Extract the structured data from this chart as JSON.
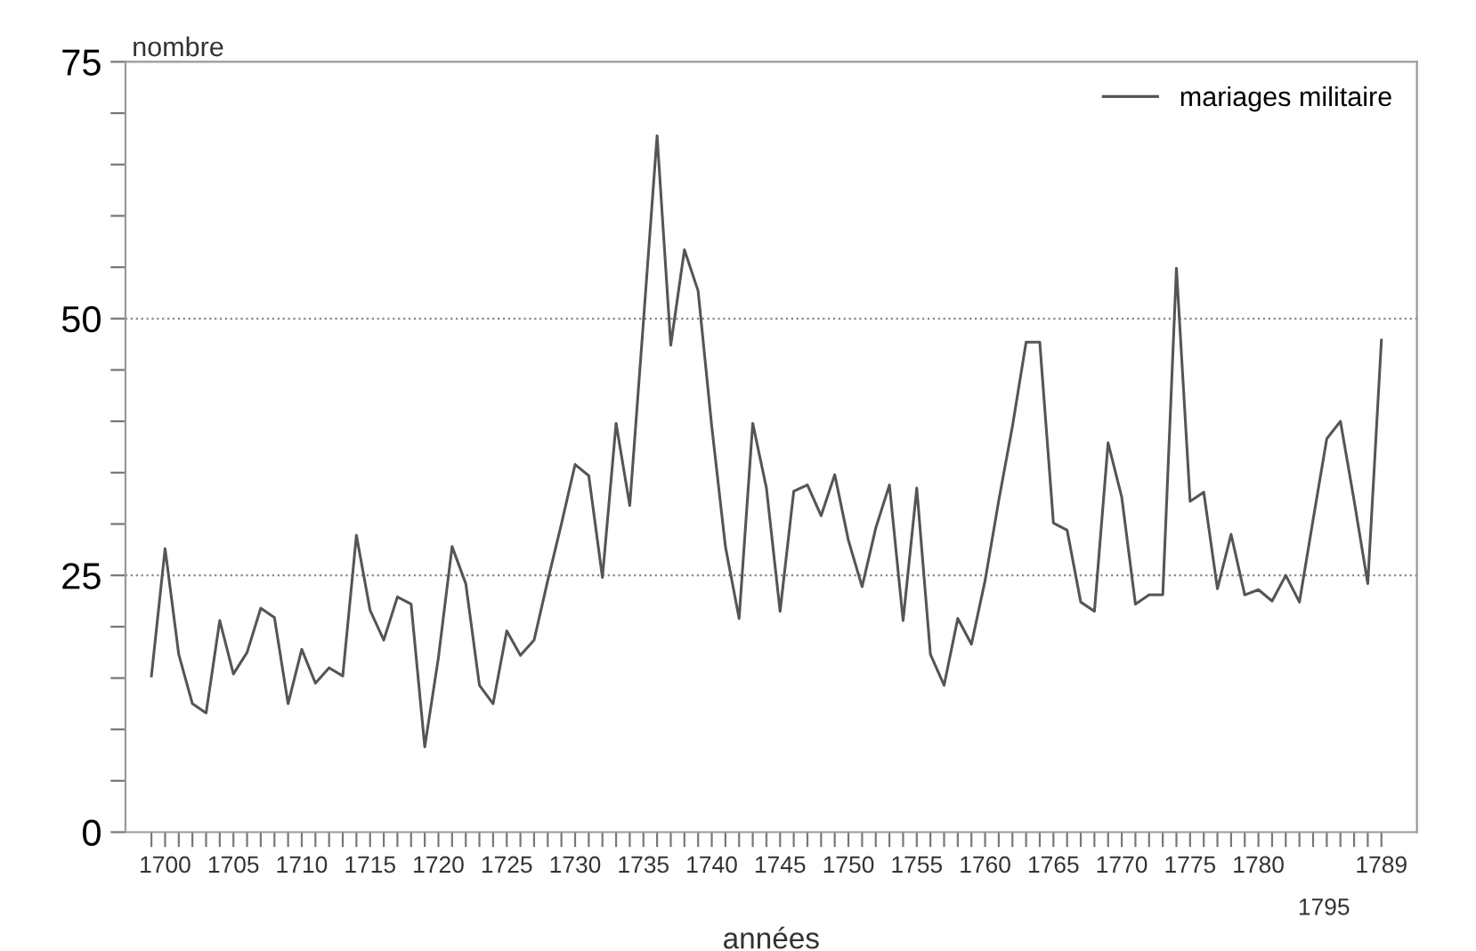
{
  "chart_data": {
    "type": "line",
    "xlabel": "années",
    "ylabel": "nombre",
    "x": [
      1699,
      1700,
      1701,
      1702,
      1703,
      1704,
      1705,
      1706,
      1707,
      1708,
      1709,
      1710,
      1711,
      1712,
      1713,
      1714,
      1715,
      1716,
      1717,
      1718,
      1719,
      1720,
      1721,
      1722,
      1723,
      1724,
      1725,
      1726,
      1727,
      1728,
      1729,
      1730,
      1731,
      1732,
      1733,
      1734,
      1735,
      1736,
      1737,
      1738,
      1739,
      1740,
      1741,
      1742,
      1743,
      1744,
      1745,
      1746,
      1747,
      1748,
      1749,
      1750,
      1751,
      1752,
      1753,
      1754,
      1755,
      1756,
      1757,
      1758,
      1759,
      1760,
      1761,
      1762,
      1763,
      1764,
      1765,
      1766,
      1767,
      1768,
      1769,
      1770,
      1771,
      1772,
      1773,
      1774,
      1775,
      1776,
      1777,
      1778,
      1779,
      1780,
      1781,
      1782,
      1783,
      1784,
      1785,
      1786,
      1787,
      1788,
      1789
    ],
    "series": [
      {
        "name": "mariages militaire",
        "color": "#555555",
        "values": [
          15.2,
          27.6,
          17.3,
          12.5,
          11.6,
          20.6,
          15.4,
          17.5,
          21.8,
          20.9,
          12.5,
          17.8,
          14.5,
          16.0,
          15.2,
          28.9,
          21.6,
          18.7,
          22.9,
          22.2,
          8.3,
          17,
          27.8,
          24.2,
          14.3,
          12.5,
          19.6,
          17.2,
          18.7,
          24.5,
          30,
          35.8,
          34.7,
          24.8,
          39.8,
          31.8,
          49.7,
          67.8,
          47.4,
          56.7,
          52.7,
          39.5,
          27.8,
          20.8,
          39.8,
          33.5,
          21.5,
          33.2,
          33.8,
          30.8,
          34.8,
          28.4,
          23.9,
          29.6,
          33.8,
          20.6,
          33.5,
          17.3,
          14.3,
          20.8,
          18.3,
          24.5,
          32.3,
          39.5,
          47.7,
          47.7,
          30.1,
          29.4,
          22.4,
          21.5,
          37.9,
          32.6,
          22.2,
          23.1,
          23.1,
          54.9,
          32.2,
          33.1,
          23.7,
          29.0,
          23.1,
          23.6,
          22.5,
          25.0,
          22.4,
          30.4,
          38.3,
          40.0,
          32.3,
          24.2,
          47.9
        ]
      }
    ],
    "xlim": [
      1697.1,
      1791.6
    ],
    "ylim": [
      0,
      75
    ],
    "yticks": [
      0,
      {
        "value": 5,
        "label": null
      },
      {
        "value": 10,
        "label": null
      },
      {
        "value": 15,
        "label": null
      },
      {
        "value": 20,
        "label": null
      },
      25,
      {
        "value": 30,
        "label": null
      },
      {
        "value": 35,
        "label": null
      },
      {
        "value": 40,
        "label": null
      },
      {
        "value": 45,
        "label": null
      },
      50,
      {
        "value": 55,
        "label": null
      },
      {
        "value": 60,
        "label": null
      },
      {
        "value": 65,
        "label": null
      },
      {
        "value": 70,
        "label": null
      },
      75
    ],
    "xticks": [
      {
        "value": 1699,
        "label": null
      },
      1700,
      {
        "value": 1701,
        "label": null
      },
      {
        "value": 1702,
        "label": null
      },
      {
        "value": 1703,
        "label": null
      },
      {
        "value": 1704,
        "label": null
      },
      1705,
      {
        "value": 1706,
        "label": null
      },
      {
        "value": 1707,
        "label": null
      },
      {
        "value": 1708,
        "label": null
      },
      {
        "value": 1709,
        "label": null
      },
      1710,
      {
        "value": 1711,
        "label": null
      },
      {
        "value": 1712,
        "label": null
      },
      {
        "value": 1713,
        "label": null
      },
      {
        "value": 1714,
        "label": null
      },
      1715,
      {
        "value": 1716,
        "label": null
      },
      {
        "value": 1717,
        "label": null
      },
      {
        "value": 1718,
        "label": null
      },
      {
        "value": 1719,
        "label": null
      },
      1720,
      {
        "value": 1721,
        "label": null
      },
      {
        "value": 1722,
        "label": null
      },
      {
        "value": 1723,
        "label": null
      },
      {
        "value": 1724,
        "label": null
      },
      1725,
      {
        "value": 1726,
        "label": null
      },
      {
        "value": 1727,
        "label": null
      },
      {
        "value": 1728,
        "label": null
      },
      {
        "value": 1729,
        "label": null
      },
      1730,
      {
        "value": 1731,
        "label": null
      },
      {
        "value": 1732,
        "label": null
      },
      {
        "value": 1733,
        "label": null
      },
      {
        "value": 1734,
        "label": null
      },
      1735,
      {
        "value": 1736,
        "label": null
      },
      {
        "value": 1737,
        "label": null
      },
      {
        "value": 1738,
        "label": null
      },
      {
        "value": 1739,
        "label": null
      },
      1740,
      {
        "value": 1741,
        "label": null
      },
      {
        "value": 1742,
        "label": null
      },
      {
        "value": 1743,
        "label": null
      },
      {
        "value": 1744,
        "label": null
      },
      1745,
      {
        "value": 1746,
        "label": null
      },
      {
        "value": 1747,
        "label": null
      },
      {
        "value": 1748,
        "label": null
      },
      {
        "value": 1749,
        "label": null
      },
      1750,
      {
        "value": 1751,
        "label": null
      },
      {
        "value": 1752,
        "label": null
      },
      {
        "value": 1753,
        "label": null
      },
      {
        "value": 1754,
        "label": null
      },
      1755,
      {
        "value": 1756,
        "label": null
      },
      {
        "value": 1757,
        "label": null
      },
      {
        "value": 1758,
        "label": null
      },
      {
        "value": 1759,
        "label": null
      },
      1760,
      {
        "value": 1761,
        "label": null
      },
      {
        "value": 1762,
        "label": null
      },
      {
        "value": 1763,
        "label": null
      },
      {
        "value": 1764,
        "label": null
      },
      1765,
      {
        "value": 1766,
        "label": null
      },
      {
        "value": 1767,
        "label": null
      },
      {
        "value": 1768,
        "label": null
      },
      {
        "value": 1769,
        "label": null
      },
      1770,
      {
        "value": 1771,
        "label": null
      },
      {
        "value": 1772,
        "label": null
      },
      {
        "value": 1773,
        "label": null
      },
      {
        "value": 1774,
        "label": null
      },
      1775,
      {
        "value": 1776,
        "label": null
      },
      {
        "value": 1777,
        "label": null
      },
      {
        "value": 1778,
        "label": null
      },
      {
        "value": 1779,
        "label": null
      },
      1780,
      {
        "value": 1781,
        "label": null
      },
      {
        "value": 1782,
        "label": null
      },
      {
        "value": 1783,
        "label": null
      },
      {
        "value": 1784,
        "label": null
      },
      {
        "value": 1785,
        "label": null
      },
      {
        "value": 1786,
        "label": null
      },
      {
        "value": 1787,
        "label": null
      },
      {
        "value": 1788,
        "label": null
      },
      1789
    ],
    "ref_lines": [
      {
        "axis": "y",
        "value": 25,
        "color": "#888888",
        "line_style": "dotted"
      },
      {
        "axis": "y",
        "value": 50,
        "color": "#888888",
        "line_style": "dotted"
      }
    ],
    "annotations": [
      "1795"
    ],
    "legend": "top right",
    "line_style": "solid",
    "marker": "none",
    "grid": false
  }
}
